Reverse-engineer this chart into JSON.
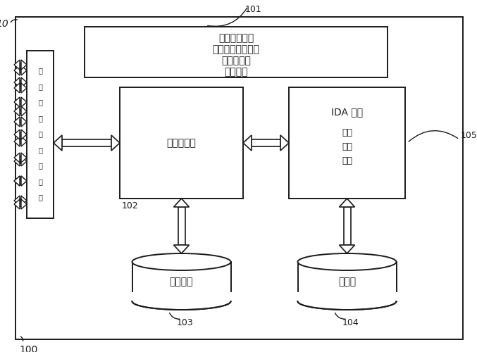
{
  "bg_color": "#ffffff",
  "line_color": "#1a1a1a",
  "text_color": "#1a1a1a",
  "label_101": "101",
  "label_102": "102",
  "label_103": "103",
  "label_104": "104",
  "label_105": "105",
  "label_10": "10",
  "label_100": "100",
  "gui_box_text_lines": [
    "图形用户接口",
    "初学者／专家模式",
    "显示／报告",
    "知识管理"
  ],
  "sensor_mgr_text": "传感器管理",
  "ida_text_lines": [
    "IDA 模块",
    "分析",
    "学习",
    "报告"
  ],
  "sensor_db_text": "传感器库",
  "status_db_text": "状况库",
  "interface_text_lines": [
    "用",
    "户",
    "接",
    "线",
    "传",
    "感",
    "器",
    "接",
    "口"
  ],
  "figsize": [
    6.77,
    5.0
  ],
  "dpi": 100
}
